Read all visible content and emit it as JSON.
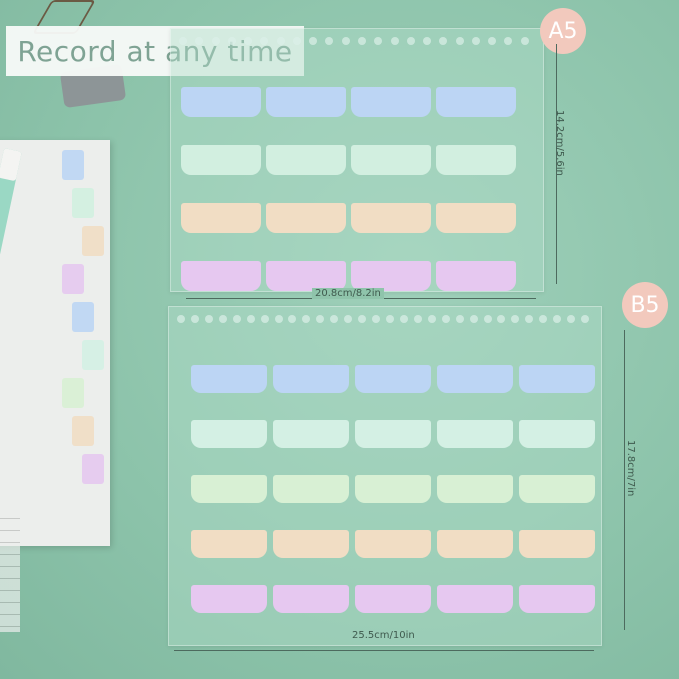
{
  "banner": {
    "text": "Record at any time"
  },
  "a5": {
    "badge": "A5",
    "width_label": "20.8cm/8.2in",
    "height_label": "14.2cm/5.6in",
    "columns": 4,
    "row_colors": [
      "#bcd5f4",
      "#d2efe0",
      "#f1ddc4",
      "#e6c8f0"
    ]
  },
  "b5": {
    "badge": "B5",
    "width_label": "25.5cm/10in",
    "height_label": "17.8cm/7in",
    "columns": 5,
    "row_colors": [
      "#bcd5f4",
      "#d4f0e4",
      "#d8f0d4",
      "#f1ddc4",
      "#e6c8f0"
    ]
  },
  "colors": {
    "background": "#8fc4ab",
    "badge": "#f2c9bd",
    "banner_text": "#7fa394"
  }
}
